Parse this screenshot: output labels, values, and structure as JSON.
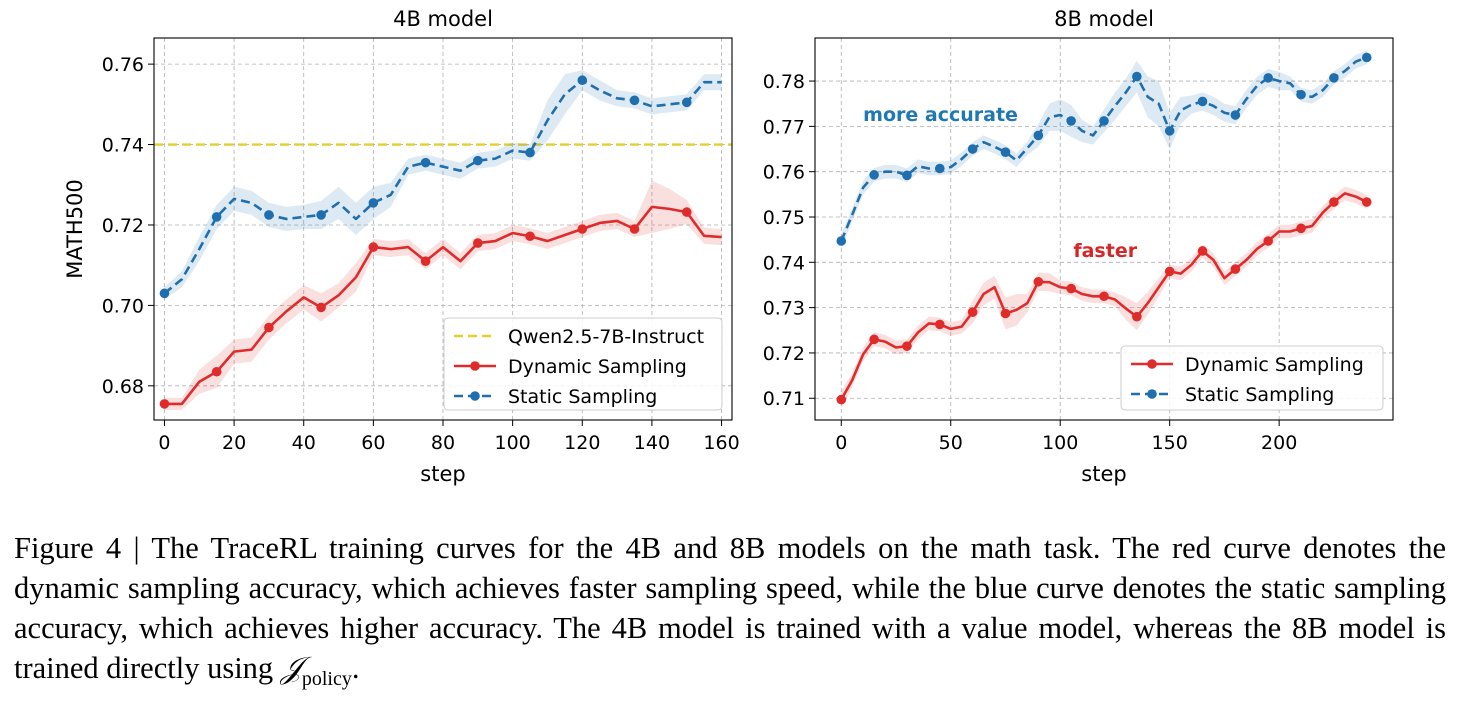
{
  "chart_data": [
    {
      "type": "line",
      "title": "4B model",
      "xlabel": "step",
      "ylabel": "MATH500",
      "xlim": [
        -3,
        163
      ],
      "ylim": [
        0.6715,
        0.7665
      ],
      "xticks": [
        0,
        20,
        40,
        60,
        80,
        100,
        120,
        140,
        160
      ],
      "yticks": [
        0.68,
        0.7,
        0.72,
        0.74,
        0.76
      ],
      "ytick_labels": [
        "0.68",
        "0.70",
        "0.72",
        "0.74",
        "0.76"
      ],
      "grid": true,
      "legend_position": "lower-right",
      "reference_line": {
        "name": "Qwen2.5-7B-Instruct",
        "y": 0.74,
        "color": "#e6cf2a",
        "style": "dashed"
      },
      "series": [
        {
          "name": "Dynamic Sampling",
          "color": "#e02b2b",
          "style": "solid",
          "marker_every": 3,
          "x": [
            0,
            5,
            10,
            15,
            20,
            25,
            30,
            35,
            40,
            45,
            50,
            55,
            60,
            65,
            70,
            75,
            80,
            85,
            90,
            95,
            100,
            105,
            110,
            115,
            120,
            125,
            130,
            135,
            140,
            145,
            150,
            155,
            160
          ],
          "y": [
            0.6755,
            0.6755,
            0.681,
            0.6835,
            0.6885,
            0.689,
            0.6945,
            0.6985,
            0.702,
            0.6995,
            0.7025,
            0.707,
            0.7145,
            0.714,
            0.7145,
            0.711,
            0.7145,
            0.711,
            0.7155,
            0.716,
            0.718,
            0.7172,
            0.716,
            0.7175,
            0.719,
            0.7205,
            0.721,
            0.719,
            0.7245,
            0.724,
            0.7232,
            0.7173,
            0.717
          ],
          "band": [
            0.0015,
            0.0015,
            0.003,
            0.004,
            0.003,
            0.003,
            0.003,
            0.003,
            0.003,
            0.0035,
            0.003,
            0.0035,
            0.002,
            0.002,
            0.002,
            0.002,
            0.002,
            0.002,
            0.002,
            0.002,
            0.002,
            0.002,
            0.002,
            0.002,
            0.002,
            0.002,
            0.002,
            0.002,
            0.0065,
            0.005,
            0.003,
            0.002,
            0.002
          ]
        },
        {
          "name": "Static Sampling",
          "color": "#1f6faf",
          "style": "dashed",
          "marker_every": 3,
          "x": [
            0,
            5,
            10,
            15,
            20,
            25,
            30,
            35,
            40,
            45,
            50,
            55,
            60,
            65,
            70,
            75,
            80,
            85,
            90,
            95,
            100,
            105,
            110,
            115,
            120,
            125,
            130,
            135,
            140,
            145,
            150,
            155,
            160
          ],
          "y": [
            0.703,
            0.7065,
            0.714,
            0.722,
            0.7265,
            0.7255,
            0.7225,
            0.7215,
            0.722,
            0.7225,
            0.7255,
            0.7215,
            0.7255,
            0.7275,
            0.7345,
            0.7355,
            0.7345,
            0.7335,
            0.736,
            0.7365,
            0.7385,
            0.738,
            0.746,
            0.7525,
            0.756,
            0.7535,
            0.7515,
            0.751,
            0.7495,
            0.75,
            0.7505,
            0.7555,
            0.7555
          ],
          "band": [
            0.0015,
            0.002,
            0.003,
            0.003,
            0.003,
            0.003,
            0.003,
            0.003,
            0.003,
            0.0035,
            0.004,
            0.004,
            0.004,
            0.003,
            0.002,
            0.002,
            0.002,
            0.002,
            0.002,
            0.002,
            0.002,
            0.002,
            0.005,
            0.005,
            0.0025,
            0.0025,
            0.002,
            0.002,
            0.002,
            0.002,
            0.002,
            0.002,
            0.002
          ]
        }
      ]
    },
    {
      "type": "line",
      "title": "8B model",
      "xlabel": "step",
      "ylabel": "",
      "xlim": [
        -12,
        252
      ],
      "ylim": [
        0.7052,
        0.7895
      ],
      "xticks": [
        0,
        50,
        100,
        150,
        200
      ],
      "yticks": [
        0.71,
        0.72,
        0.73,
        0.74,
        0.75,
        0.76,
        0.77,
        0.78
      ],
      "ytick_labels": [
        "0.71",
        "0.72",
        "0.73",
        "0.74",
        "0.75",
        "0.76",
        "0.77",
        "0.78"
      ],
      "grid": true,
      "legend_position": "lower-right",
      "annotations": [
        {
          "text": "more accurate",
          "x": 10,
          "y": 0.7712,
          "color": "#1f77b4"
        },
        {
          "text": "faster",
          "x": 106,
          "y": 0.7412,
          "color": "#d62728"
        }
      ],
      "series": [
        {
          "name": "Dynamic Sampling",
          "color": "#e02b2b",
          "style": "solid",
          "marker_every": 3,
          "x": [
            0,
            5,
            10,
            15,
            20,
            25,
            30,
            35,
            40,
            45,
            50,
            55,
            60,
            65,
            70,
            75,
            80,
            85,
            90,
            95,
            100,
            105,
            110,
            115,
            120,
            125,
            130,
            135,
            140,
            145,
            150,
            155,
            160,
            165,
            170,
            175,
            180,
            185,
            190,
            195,
            200,
            205,
            210,
            215,
            220,
            225,
            230,
            235,
            240
          ],
          "y": [
            0.7097,
            0.714,
            0.7197,
            0.723,
            0.7225,
            0.7212,
            0.7215,
            0.7245,
            0.7265,
            0.7263,
            0.7253,
            0.7258,
            0.729,
            0.733,
            0.7345,
            0.7287,
            0.7295,
            0.731,
            0.7357,
            0.7356,
            0.7345,
            0.7342,
            0.733,
            0.7325,
            0.7325,
            0.7318,
            0.7298,
            0.728,
            0.731,
            0.7345,
            0.738,
            0.7375,
            0.7395,
            0.7425,
            0.7405,
            0.7365,
            0.7385,
            0.7405,
            0.743,
            0.7447,
            0.7468,
            0.7468,
            0.7475,
            0.748,
            0.751,
            0.7533,
            0.7552,
            0.7545,
            0.7533
          ],
          "band": [
            0.002,
            0.0015,
            0.0015,
            0.0015,
            0.0015,
            0.0015,
            0.0015,
            0.0015,
            0.0015,
            0.0015,
            0.0015,
            0.0015,
            0.0025,
            0.0025,
            0.0025,
            0.0035,
            0.0035,
            0.002,
            0.002,
            0.002,
            0.0015,
            0.0015,
            0.0015,
            0.0015,
            0.0015,
            0.0015,
            0.0025,
            0.003,
            0.0025,
            0.002,
            0.0015,
            0.0015,
            0.0015,
            0.0015,
            0.0015,
            0.0015,
            0.0015,
            0.0015,
            0.0015,
            0.0015,
            0.0015,
            0.0015,
            0.0015,
            0.0015,
            0.0015,
            0.0015,
            0.0015,
            0.0015,
            0.0015
          ]
        },
        {
          "name": "Static Sampling",
          "color": "#1f6faf",
          "style": "dashed",
          "marker_every": 3,
          "x": [
            0,
            5,
            10,
            15,
            20,
            25,
            30,
            35,
            40,
            45,
            50,
            55,
            60,
            65,
            70,
            75,
            80,
            85,
            90,
            95,
            100,
            105,
            110,
            115,
            120,
            125,
            130,
            135,
            140,
            145,
            150,
            155,
            160,
            165,
            170,
            175,
            180,
            185,
            190,
            195,
            200,
            205,
            210,
            215,
            220,
            225,
            230,
            235,
            240
          ],
          "y": [
            0.7447,
            0.7505,
            0.7565,
            0.7593,
            0.76,
            0.76,
            0.7592,
            0.7612,
            0.7607,
            0.7607,
            0.761,
            0.7628,
            0.765,
            0.7665,
            0.7655,
            0.7643,
            0.7625,
            0.7652,
            0.768,
            0.772,
            0.7725,
            0.7712,
            0.769,
            0.768,
            0.7712,
            0.7745,
            0.7775,
            0.781,
            0.7765,
            0.775,
            0.769,
            0.7735,
            0.7748,
            0.7755,
            0.7745,
            0.773,
            0.7725,
            0.776,
            0.779,
            0.7807,
            0.78,
            0.7795,
            0.777,
            0.7765,
            0.778,
            0.7807,
            0.7822,
            0.7843,
            0.7852
          ],
          "band": [
            0.0015,
            0.0015,
            0.0015,
            0.0015,
            0.0015,
            0.0015,
            0.0015,
            0.0015,
            0.0015,
            0.0015,
            0.0015,
            0.0015,
            0.0015,
            0.0015,
            0.0015,
            0.0015,
            0.0015,
            0.0015,
            0.0025,
            0.003,
            0.0035,
            0.0035,
            0.0025,
            0.002,
            0.0025,
            0.003,
            0.003,
            0.0035,
            0.0045,
            0.005,
            0.004,
            0.003,
            0.002,
            0.002,
            0.002,
            0.002,
            0.002,
            0.002,
            0.002,
            0.002,
            0.002,
            0.0015,
            0.0015,
            0.0015,
            0.0015,
            0.0015,
            0.0015,
            0.0015,
            0.0015
          ]
        }
      ]
    }
  ],
  "caption": {
    "text": "Figure 4 | The TraceRL training curves for the 4B and 8B models on the math task. The red curve denotes the dynamic sampling accuracy, which achieves faster sampling speed, while the blue curve denotes the static sampling accuracy, which achieves higher accuracy. The 4B model is trained with a value model, whereas the 8B model is trained directly using ",
    "symbol": "𝒥",
    "symbol_subscript": "policy",
    "end": "."
  }
}
